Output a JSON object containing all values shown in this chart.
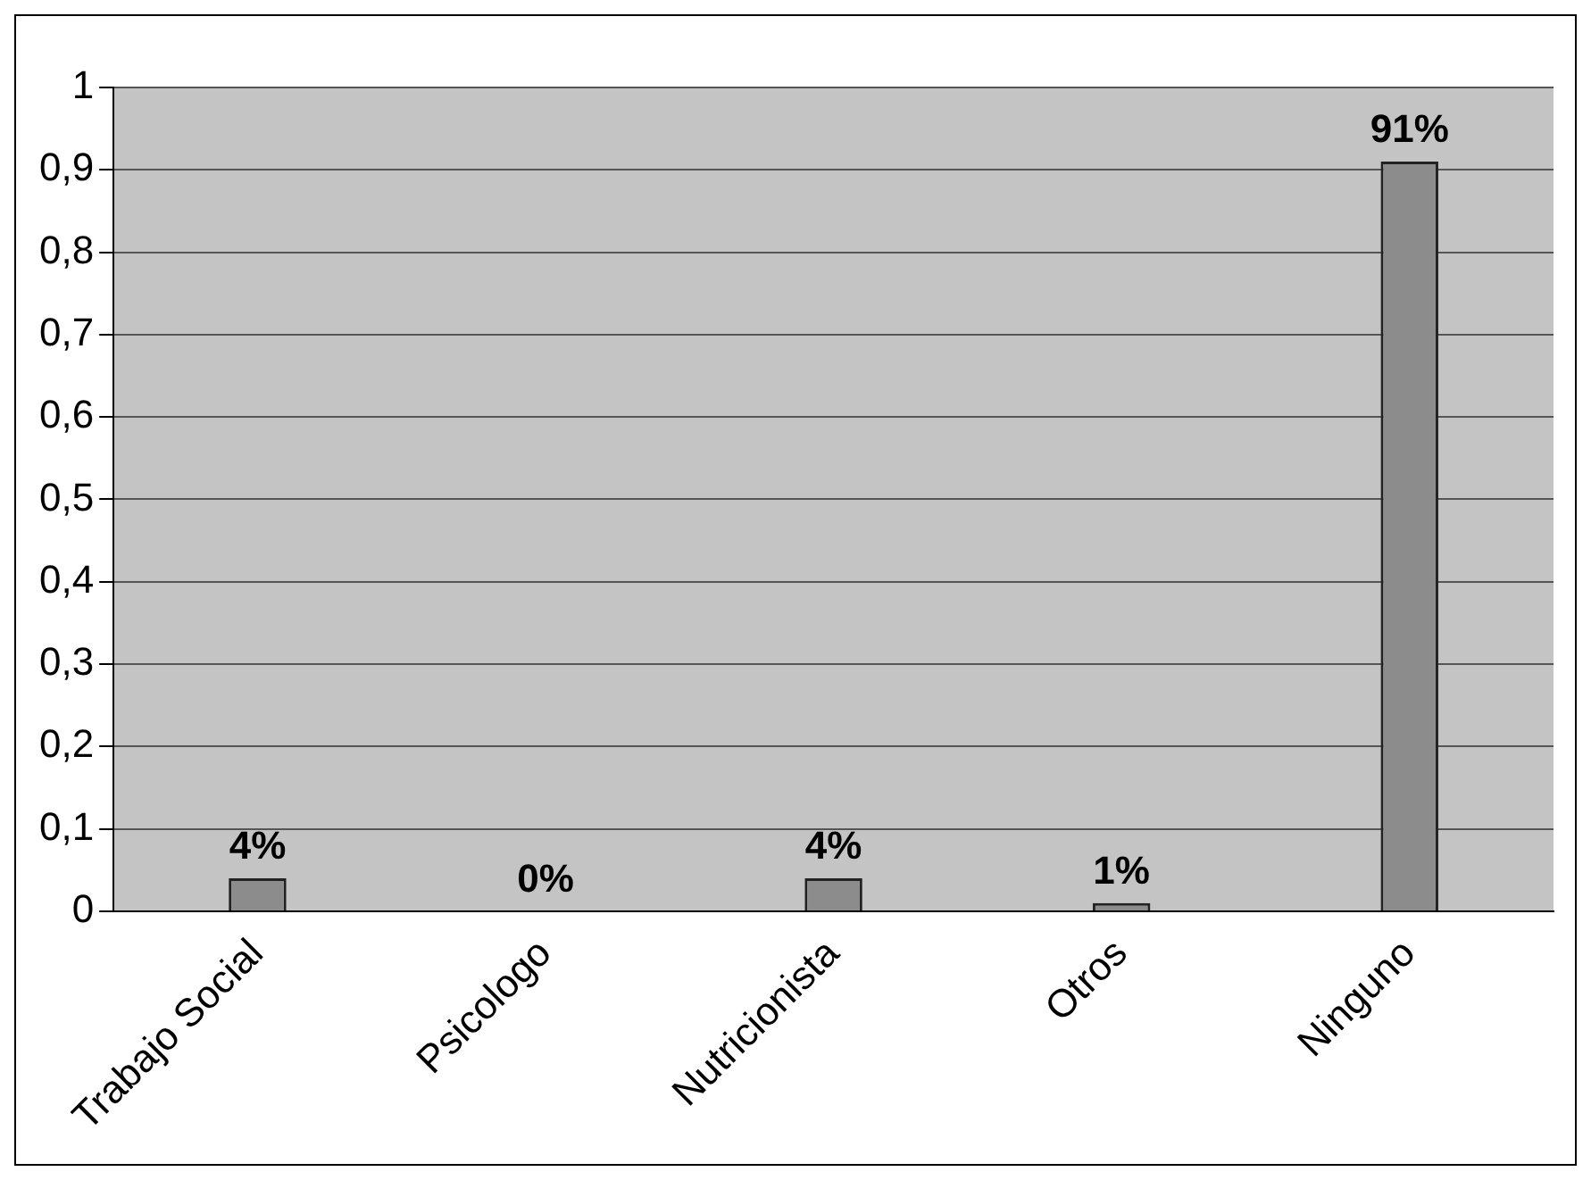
{
  "chart_data": {
    "type": "bar",
    "categories": [
      "Trabajo Social",
      "Psicologo",
      "Nutricionista",
      "Otros",
      "Ninguno"
    ],
    "values": [
      0.04,
      0,
      0.04,
      0.01,
      0.91
    ],
    "value_labels": [
      "4%",
      "0%",
      "4%",
      "1%",
      "91%"
    ],
    "color": "#8c8c8c",
    "ylim": [
      0,
      1
    ],
    "yticks": [
      0,
      {
        "value": 0.1,
        "label": "0,1"
      },
      {
        "value": 0.2,
        "label": "0,2"
      },
      {
        "value": 0.3,
        "label": "0,3"
      },
      {
        "value": 0.4,
        "label": "0,4"
      },
      {
        "value": 0.5,
        "label": "0,5"
      },
      {
        "value": 0.6,
        "label": "0,6"
      },
      {
        "value": 0.7,
        "label": "0,7"
      },
      {
        "value": 0.8,
        "label": "0,8"
      },
      {
        "value": 0.9,
        "label": "0,9"
      },
      1
    ],
    "grid": "y",
    "legend": false
  }
}
